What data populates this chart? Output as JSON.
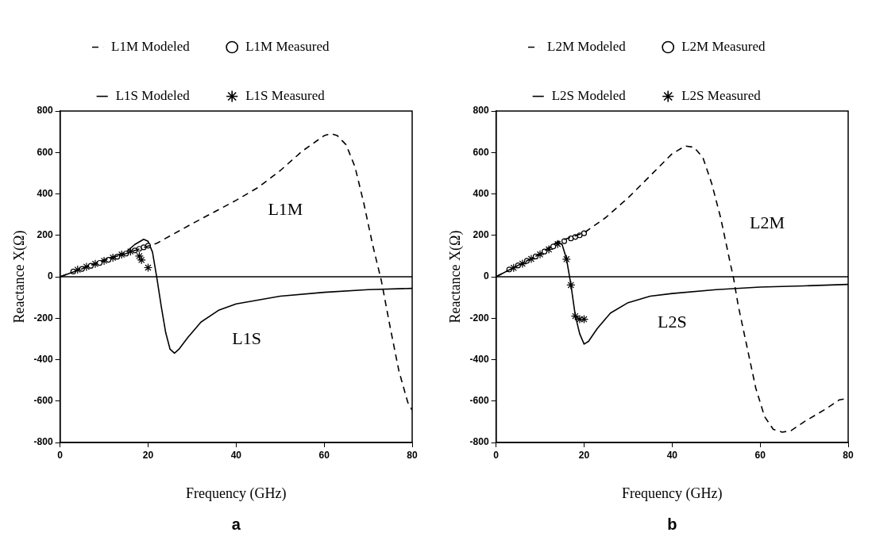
{
  "chart_data": [
    {
      "type": "line",
      "xlabel": "Frequency (GHz)",
      "ylabel": "Reactance X(Ω)",
      "xlim": [
        0,
        80
      ],
      "ylim": [
        -800,
        800
      ],
      "xticks": [
        0,
        20,
        40,
        60,
        80
      ],
      "yticks": [
        -800,
        -600,
        -400,
        -200,
        0,
        200,
        400,
        600,
        800
      ],
      "grid": false,
      "legend": "top",
      "ref_lines": [
        {
          "axis": "y",
          "value": 0,
          "color": "#000000"
        }
      ],
      "annotations": [
        "L1M",
        "L1S",
        "a"
      ],
      "series": [
        {
          "name": "L1M Modeled",
          "type": "line",
          "line_style": "dashed",
          "marker": "none",
          "color": "#000000",
          "x": [
            0,
            5,
            10,
            15,
            18,
            22,
            30,
            40,
            45,
            50,
            55,
            60,
            61.5,
            63,
            65,
            67,
            69,
            71,
            73,
            75,
            77,
            79,
            80
          ],
          "values": [
            0,
            38,
            81,
            112,
            134,
            162,
            256,
            369,
            431,
            512,
            606,
            681,
            691,
            681,
            637,
            531,
            356,
            156,
            -19,
            -244,
            -456,
            -606,
            -644
          ]
        },
        {
          "name": "L1M Measured",
          "type": "scatter",
          "marker": "circle",
          "color": "#000000",
          "x": [
            3,
            5,
            7,
            9,
            11,
            13,
            15,
            17,
            18,
            19,
            20
          ],
          "values": [
            25,
            38,
            53,
            67,
            82,
            97,
            112,
            127,
            135,
            142,
            150
          ]
        },
        {
          "name": "L1S Modeled",
          "type": "line",
          "line_style": "solid",
          "marker": "none",
          "color": "#000000",
          "x": [
            0,
            5,
            10,
            15,
            17,
            19,
            20,
            21,
            22,
            23,
            24,
            25,
            26,
            27,
            29,
            32,
            36,
            40,
            50,
            60,
            70,
            80
          ],
          "values": [
            0,
            38,
            81,
            119,
            156,
            181,
            171,
            119,
            -6,
            -144,
            -269,
            -350,
            -369,
            -350,
            -294,
            -219,
            -162,
            -131,
            -94,
            -75,
            -62,
            -56
          ]
        },
        {
          "name": "L1S Measured",
          "type": "scatter",
          "marker": "cross",
          "color": "#000000",
          "x": [
            4,
            6,
            8,
            10,
            12,
            14,
            16,
            18,
            18.5,
            20
          ],
          "values": [
            34,
            48,
            62,
            77,
            92,
            107,
            122,
            100,
            81,
            44
          ]
        }
      ]
    },
    {
      "type": "line",
      "xlabel": "Frequency (GHz)",
      "ylabel": "Reactance X(Ω)",
      "xlim": [
        0,
        80
      ],
      "ylim": [
        -800,
        800
      ],
      "xticks": [
        0,
        20,
        40,
        60,
        80
      ],
      "yticks": [
        -800,
        -600,
        -400,
        -200,
        0,
        200,
        400,
        600,
        800
      ],
      "grid": false,
      "legend": "top",
      "ref_lines": [
        {
          "axis": "y",
          "value": 0,
          "color": "#000000"
        }
      ],
      "annotations": [
        "L2M",
        "L2S",
        "b"
      ],
      "series": [
        {
          "name": "L2M Modeled",
          "type": "line",
          "line_style": "dashed",
          "marker": "none",
          "color": "#000000",
          "x": [
            0,
            5,
            10,
            14,
            20,
            25,
            30,
            35,
            40,
            43,
            45,
            47,
            49,
            51,
            53,
            54,
            55,
            57,
            59,
            61,
            63,
            65,
            67,
            70,
            75,
            78,
            80
          ],
          "values": [
            0,
            55,
            110,
            169,
            212,
            287,
            381,
            487,
            594,
            631,
            625,
            575,
            450,
            287,
            87,
            -12,
            -137,
            -337,
            -537,
            -675,
            -737,
            -750,
            -743,
            -700,
            -637,
            -594,
            -587
          ]
        },
        {
          "name": "L2M Measured",
          "type": "scatter",
          "marker": "circle",
          "color": "#000000",
          "x": [
            3,
            5,
            7,
            9,
            11,
            13,
            15.5,
            17,
            18,
            19,
            20
          ],
          "values": [
            35,
            55,
            77,
            98,
            122,
            146,
            172,
            185,
            192,
            200,
            210
          ]
        },
        {
          "name": "L2S Modeled",
          "type": "line",
          "line_style": "solid",
          "marker": "none",
          "color": "#000000",
          "x": [
            0,
            5,
            10,
            14,
            15,
            16,
            17,
            18,
            19,
            20,
            21,
            23,
            26,
            30,
            35,
            40,
            50,
            60,
            70,
            80
          ],
          "values": [
            0,
            55,
            110,
            169,
            156,
            87,
            -37,
            -187,
            -275,
            -325,
            -312,
            -250,
            -175,
            -125,
            -94,
            -81,
            -62,
            -50,
            -44,
            -37
          ]
        },
        {
          "name": "L2S Measured",
          "type": "scatter",
          "marker": "cross",
          "color": "#000000",
          "x": [
            4,
            6,
            8,
            10,
            12,
            14,
            16,
            17,
            18,
            19,
            20
          ],
          "values": [
            43,
            63,
            86,
            108,
            132,
            158,
            85,
            -40,
            -190,
            -205,
            -205
          ]
        }
      ]
    }
  ]
}
